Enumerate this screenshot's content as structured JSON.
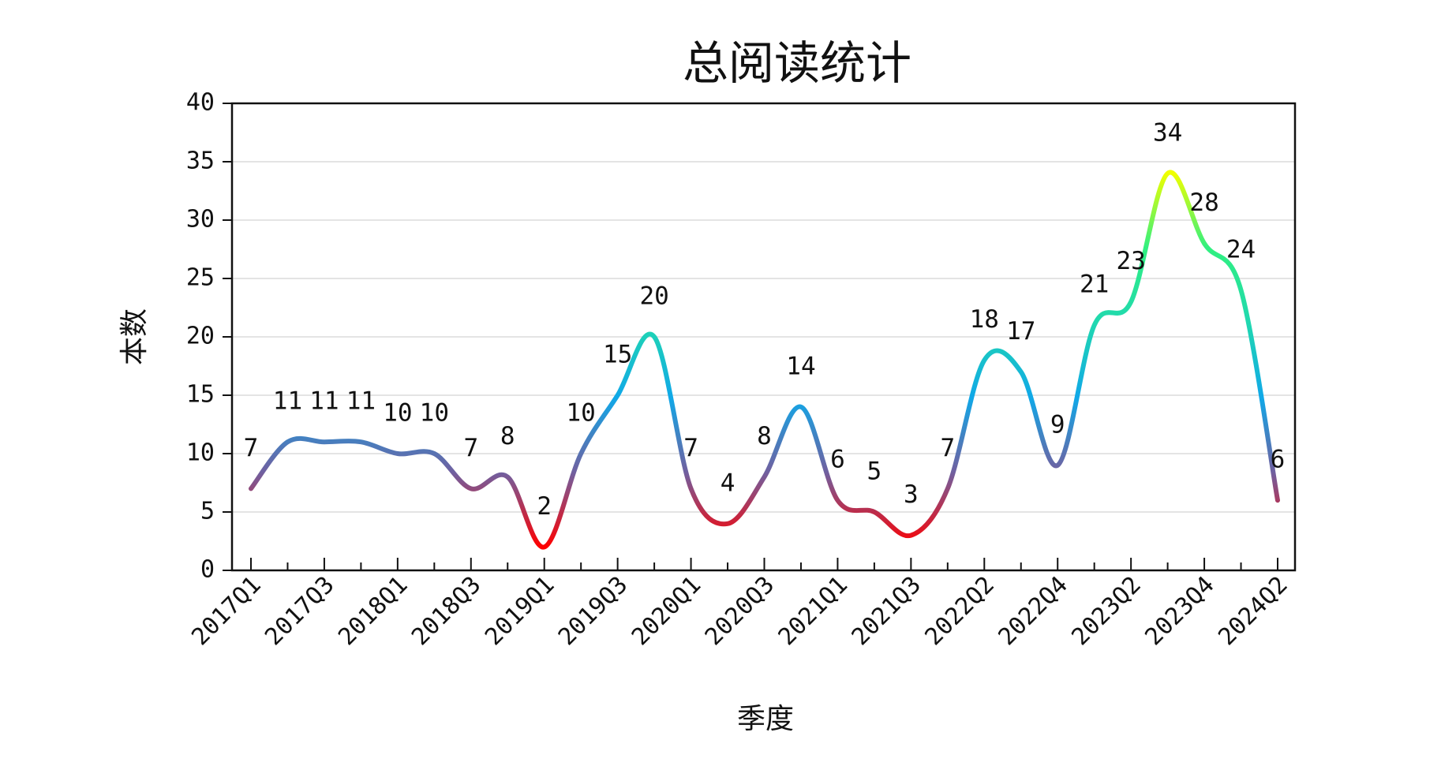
{
  "chart_data": {
    "type": "line",
    "title": "总阅读统计",
    "x_label": "季度",
    "y_label": "本数",
    "categories": [
      "2017Q1",
      null,
      "2017Q3",
      null,
      "2018Q1",
      null,
      "2018Q3",
      null,
      "2019Q1",
      null,
      "2019Q3",
      null,
      "2020Q1",
      null,
      "2020Q3",
      null,
      "2021Q1",
      null,
      "2021Q3",
      null,
      "2022Q2",
      null,
      "2022Q4",
      null,
      "2023Q2",
      null,
      "2023Q4",
      null,
      "2024Q2"
    ],
    "values": [
      7,
      11,
      11,
      11,
      10,
      10,
      7,
      8,
      2,
      10,
      15,
      20,
      7,
      4,
      8,
      14,
      6,
      5,
      3,
      7,
      18,
      17,
      9,
      21,
      23,
      34,
      28,
      24,
      6
    ],
    "colors": [
      "#ff0000",
      "#7060a0",
      "#10a8e8",
      "#20d8b0",
      "#30f080",
      "#f0ff00"
    ],
    "ylim": [
      0,
      40
    ],
    "yticks": [
      0,
      5,
      10,
      15,
      20,
      25,
      30,
      35,
      40
    ],
    "grid": true
  }
}
